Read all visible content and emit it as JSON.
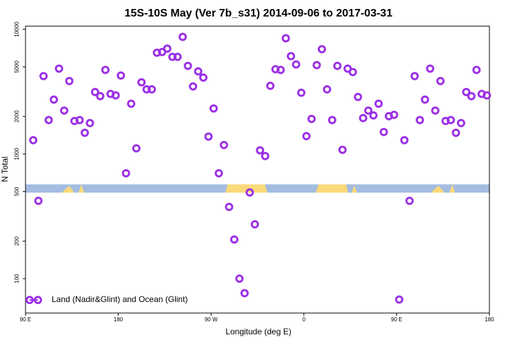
{
  "chart_data": {
    "type": "scatter",
    "title": "15S-10S May (Ver 7b_s31)   2014-09-06 to 2017-03-31",
    "x_label": "Longitude (deg E)",
    "y_label": "N Total",
    "x": [
      97.5,
      102.5,
      107.5,
      112.5,
      117.5,
      122.5,
      127.5,
      132.5,
      137.5,
      142.5,
      147.5,
      152.5,
      157.5,
      162.5,
      167.5,
      172.5,
      177.5,
      182.5,
      187.5,
      192.5,
      197.5,
      202.5,
      207.5,
      212.5,
      217.5,
      222.5,
      227.5,
      232.5,
      237.5,
      242.5,
      247.5,
      252.5,
      257.5,
      262.5,
      267.5,
      272.5,
      277.5,
      282.5,
      287.5,
      292.5,
      297.5,
      302.5,
      307.5,
      312.5,
      317.5,
      322.5,
      327.5,
      332.5,
      337.5,
      342.5,
      347.5,
      352.5,
      357.5,
      362.5,
      367.5,
      372.5,
      377.5,
      382.5,
      387.5,
      392.5,
      397.5,
      402.5,
      407.5,
      412.5,
      417.5,
      422.5,
      427.5,
      432.5,
      437.5,
      442.5,
      447.5,
      452.5,
      457.5,
      462.5,
      467.5,
      472.5,
      477.5,
      482.5,
      487.5,
      492.5,
      497.5,
      502.5,
      507.5,
      512.5,
      517.5,
      522.5,
      527.5,
      532.5,
      537.5
    ],
    "series": [
      {
        "name": "Land (Nadir&Glint) and Ocean (Glint)",
        "color": "#9b30e6",
        "values": [
          1290,
          421,
          4210,
          1870,
          2730,
          4840,
          2230,
          3850,
          1840,
          1870,
          1480,
          1770,
          3140,
          2910,
          4720,
          3030,
          2950,
          4260,
          700,
          2530,
          1110,
          3760,
          3300,
          3300,
          6490,
          6570,
          7000,
          6010,
          6010,
          8690,
          5090,
          3480,
          4600,
          4100,
          1380,
          2320,
          700,
          1180,
          376,
          206,
          100,
          76.5,
          491,
          273,
          1070,
          962,
          3520,
          4780,
          4720,
          8470,
          6090,
          5230,
          3100,
          1390,
          1910,
          5160,
          6920,
          3300,
          1870,
          5090,
          1080,
          4840,
          4540,
          2870,
          1940,
          2230,
          2040,
          2530,
          1500,
          2010,
          2060,
          68,
          1290,
          421,
          4210,
          1870,
          2730,
          4840,
          2230,
          3850,
          1840,
          1870,
          1480,
          1770,
          3140,
          2910,
          4720,
          3030,
          2950
        ]
      }
    ],
    "xlim": [
      90,
      540
    ],
    "xticks": [
      {
        "value": 90,
        "label": "90 E"
      },
      {
        "value": 180,
        "label": "180"
      },
      {
        "value": 270,
        "label": "90 W"
      },
      {
        "value": 360,
        "label": "0"
      },
      {
        "value": 450,
        "label": "90 E"
      },
      {
        "value": 540,
        "label": "180"
      }
    ],
    "ylim": [
      53,
      10600
    ],
    "ylog": true,
    "yticks": [
      100,
      200,
      500,
      1000,
      2000,
      5000,
      10000
    ],
    "legend": "lower left"
  }
}
